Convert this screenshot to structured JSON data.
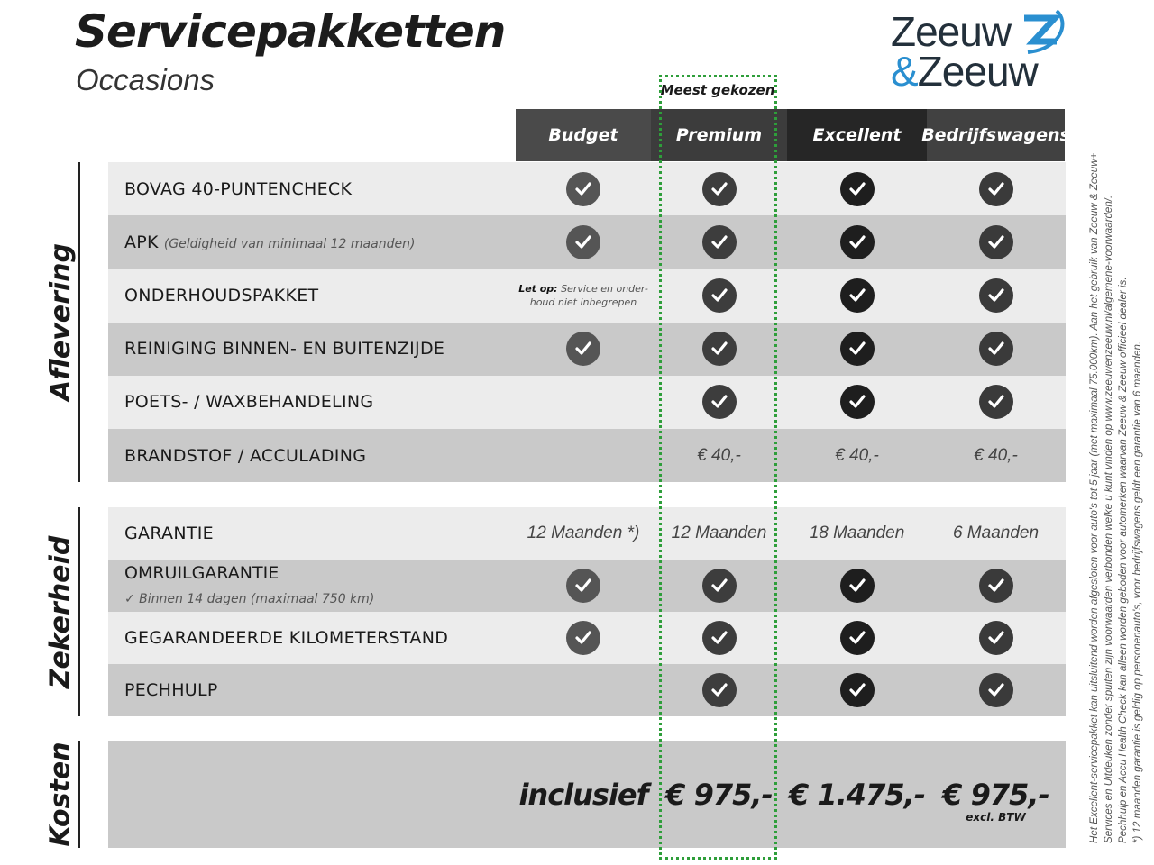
{
  "title": "Servicepakketten",
  "subtitle": "Occasions",
  "logo": {
    "line1": "Zeeuw",
    "amp": "&",
    "line2": "Zeeuw",
    "accent": "#2a8fd0"
  },
  "most_chosen": "Meest gekozen",
  "highlight_color": "#2e9e3a",
  "columns": [
    {
      "name": "Budget",
      "header_color": "#4a4a4a",
      "check_color": "#555555"
    },
    {
      "name": "Premium",
      "header_color": "#3c3c3c",
      "check_color": "#3d3d3d"
    },
    {
      "name": "Excellent",
      "header_color": "#262626",
      "check_color": "#1e1e1e"
    },
    {
      "name": "Bedrijfswagens",
      "header_color": "#414141",
      "check_color": "#3a3a3a"
    }
  ],
  "sections": [
    {
      "title": "Aflevering",
      "rows": [
        {
          "label": "BOVAG 40-PUNTENCHECK",
          "cells": [
            "check",
            "check",
            "check",
            "check"
          ]
        },
        {
          "label": "APK",
          "sub": "(Geldigheid van minimaal 12 maanden)",
          "cells": [
            "check",
            "check",
            "check",
            "check"
          ]
        },
        {
          "label": "ONDERHOUDSPAKKET",
          "cells": [
            {
              "bold": "Let op:",
              "text": " Service en onder-",
              "text2": "houd niet inbegrepen"
            },
            "check",
            "check",
            "check"
          ]
        },
        {
          "label": "REINIGING BINNEN- EN BUITENZIJDE",
          "cells": [
            "check",
            "check",
            "check",
            "check"
          ]
        },
        {
          "label": "POETS- / WAXBEHANDELING",
          "cells": [
            "",
            "check",
            "check",
            "check"
          ]
        },
        {
          "label": "BRANDSTOF / ACCULADING",
          "cells": [
            "",
            "€ 40,-",
            "€ 40,-",
            "€ 40,-"
          ]
        }
      ]
    },
    {
      "title": "Zekerheid",
      "rows": [
        {
          "label": "GARANTIE",
          "cells": [
            "12 Maanden *)",
            "12 Maanden",
            "18 Maanden",
            "6 Maanden"
          ]
        },
        {
          "label": "OMRUILGARANTIE",
          "sub2": "✓   Binnen 14 dagen (maximaal 750 km)",
          "cells": [
            "check",
            "check",
            "check",
            "check"
          ]
        },
        {
          "label": "GEGARANDEERDE KILOMETERSTAND",
          "cells": [
            "check",
            "check",
            "check",
            "check"
          ]
        },
        {
          "label": "PECHHULP",
          "cells": [
            "",
            "check",
            "check",
            "check"
          ]
        }
      ]
    },
    {
      "title": "Kosten",
      "prices": [
        "inclusief",
        "€ 975,-",
        "€ 1.475,-",
        "€ 975,-"
      ],
      "excl": "excl. BTW"
    }
  ],
  "footnotes": [
    "Het Excellent-servicepakket kan uitsluitend worden afgesloten voor auto's tot 5 jaar (met maximaal 75.000km). Aan het gebruik van Zeeuw & Zeeuw+",
    "Services en Uitdeuken zonder spuiten zijn voorwaarden verbonden welke u kunt vinden op www.zeeuwenzeeuw.nl/algemene-voorwaarden/.",
    "Pechhulp en Accu Health Check kan alleen worden geboden voor automerken waarvan Zeeuw & Zeeuw officieel dealer is.",
    "*) 12 maanden garantie is geldig op personenauto's, voor bedrijfswagens geldt een garantie van 6 maanden."
  ]
}
